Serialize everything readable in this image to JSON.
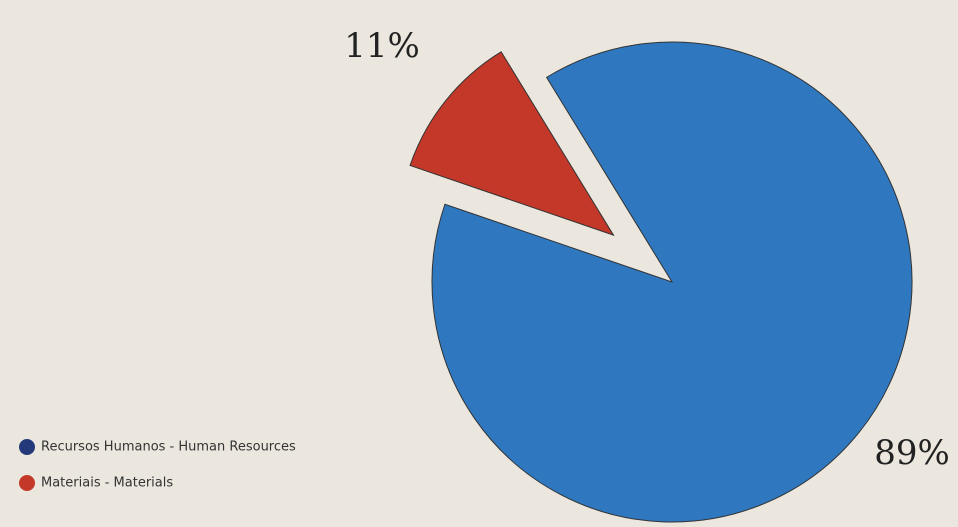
{
  "chart_data": {
    "type": "pie",
    "categories": [
      "Recursos Humanos - Human Resources",
      "Materiais - Materials"
    ],
    "values": [
      89,
      11
    ],
    "value_labels": [
      "89%",
      "11%"
    ],
    "colors": [
      "#2f78c0",
      "#c4382a"
    ],
    "legend": "bottom-left"
  }
}
